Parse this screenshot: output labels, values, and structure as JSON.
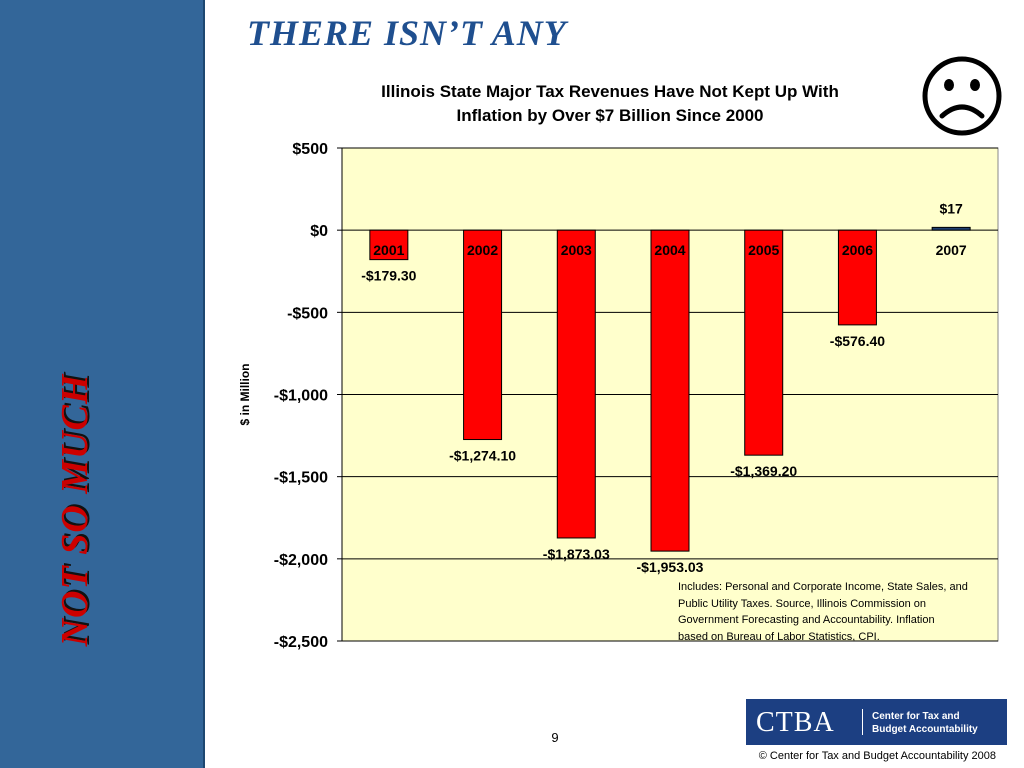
{
  "headline": "THERE ISN’T ANY",
  "side_text": "NOT SO MUCH",
  "icon": "frowning-face",
  "chart_title_line1": "Illinois State Major Tax Revenues Have Not Kept Up With",
  "chart_title_line2": "Inflation by Over $7 Billion Since 2000",
  "note_lines": [
    "Includes:  Personal and Corporate Income, State Sales, and",
    "Public Utility Taxes.  Source, Illinois Commission on",
    "Government Forecasting and Accountability.  Inflation",
    "based on Bureau of Labor Statistics, CPI."
  ],
  "logo": {
    "mark": "CTBA",
    "name_line1": "Center for Tax and",
    "name_line2": "Budget Accountability"
  },
  "page_number": "9",
  "footer": "©  Center for Tax and Budget Accountability 2008",
  "chart_data": {
    "type": "bar",
    "categories": [
      "2001",
      "2002",
      "2003",
      "2004",
      "2005",
      "2006",
      "2007"
    ],
    "values": [
      -179.3,
      -1274.1,
      -1873.03,
      -1953.03,
      -1369.2,
      -576.4,
      17
    ],
    "data_labels": [
      "-$179.30",
      "-$1,274.10",
      "-$1,873.03",
      "-$1,953.03",
      "-$1,369.20",
      "-$576.40",
      "$17"
    ],
    "ylabel": "$ in Million",
    "ylim": [
      -2500,
      500
    ],
    "y_ticks": [
      500,
      0,
      -500,
      -1000,
      -1500,
      -2000,
      -2500
    ],
    "y_tick_labels": [
      "$500",
      "$0",
      "-$500",
      "-$1,000",
      "-$1,500",
      "-$2,000",
      "-$2,500"
    ],
    "grid": true,
    "plot_background": "#ffffcc",
    "colors": {
      "negative": "#ff0000",
      "positive": "#1f3f70"
    }
  }
}
